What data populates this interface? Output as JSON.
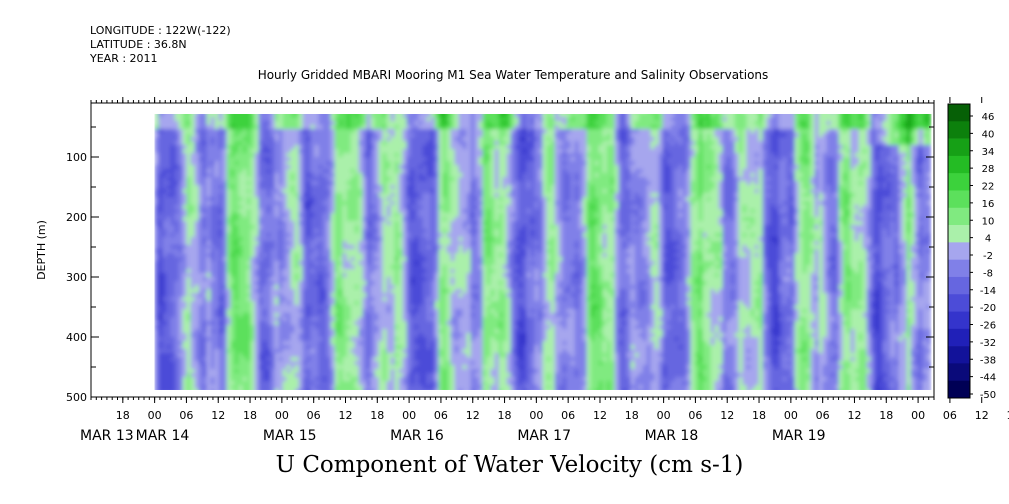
{
  "header": {
    "longitude": "LONGITUDE : 122W(-122)",
    "latitude": "LATITUDE : 36.8N",
    "year": "YEAR : 2011"
  },
  "chart_data": {
    "type": "heatmap",
    "title": "Hourly Gridded MBARI Mooring M1 Sea Water Temperature and Salinity Observations",
    "variable": "U Component of Water Velocity (cm s-1)",
    "ylabel": "DEPTH (m)",
    "y_ticks": [
      100,
      200,
      300,
      400,
      500
    ],
    "ylim": [
      500,
      10
    ],
    "y_inverted": true,
    "x_hour_ticks": [
      "18",
      "00",
      "06",
      "12",
      "18",
      "00",
      "06",
      "12",
      "18",
      "00",
      "06",
      "12",
      "18",
      "00",
      "06",
      "12",
      "18",
      "00",
      "06",
      "12",
      "18",
      "00",
      "06",
      "12",
      "18",
      "00",
      "06",
      "12",
      "18",
      "00"
    ],
    "x_date_labels": [
      "MAR 13",
      "MAR 14",
      "MAR 15",
      "MAR 16",
      "MAR 17",
      "MAR 18",
      "MAR 19"
    ],
    "x_range": [
      "2011-03-13T12:00",
      "2011-03-20T03:00"
    ],
    "data_range": [
      "2011-03-14T00:00",
      "2011-03-20T00:00"
    ],
    "depth_data_range": [
      20,
      490
    ],
    "colorbar": {
      "levels": [
        -50,
        -44,
        -38,
        -32,
        -26,
        -20,
        -14,
        -8,
        -2,
        4,
        10,
        16,
        22,
        28,
        34,
        40,
        46
      ],
      "tick_labels": [
        "46",
        "40",
        "34",
        "28",
        "22",
        "16",
        "10",
        "4",
        "-2",
        "-8",
        "-14",
        "-20",
        "-26",
        "-32",
        "-38",
        "-44",
        "-50"
      ],
      "colors_negative": [
        "#000055",
        "#0a0a7a",
        "#12129a",
        "#2020b8",
        "#3434cc",
        "#4c4cd8",
        "#6666e0",
        "#8080e8",
        "#a6a6ee"
      ],
      "colors_positive": [
        "#aaf0aa",
        "#80ea80",
        "#5ce05c",
        "#3cd23c",
        "#24bc24",
        "#16a016",
        "#0c800c",
        "#066006"
      ]
    },
    "pattern_summary": "Alternating vertical bands of positive (green) and negative (blue) U velocity; strongest positive values near the surface (<50 m) and late on MAR 19"
  }
}
